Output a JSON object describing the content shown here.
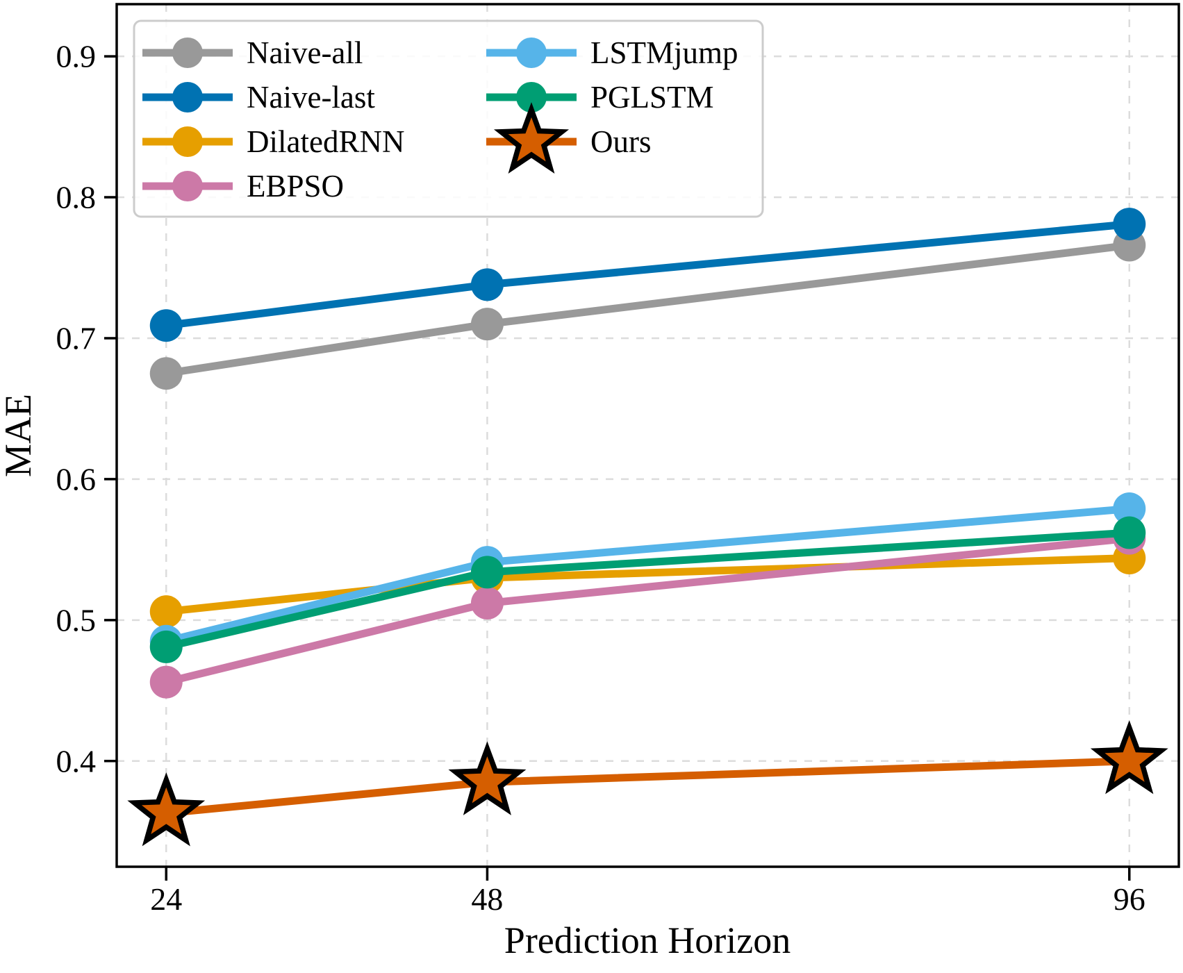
{
  "chart_data": {
    "type": "line",
    "title": "",
    "xlabel": "Prediction Horizon",
    "ylabel": "MAE",
    "x": [
      24,
      48,
      96
    ],
    "x_tick_labels": [
      "24",
      "48",
      "96"
    ],
    "y_ticks": [
      0.4,
      0.5,
      0.6,
      0.7,
      0.8,
      0.9
    ],
    "y_tick_labels": [
      "0.4",
      "0.5",
      "0.6",
      "0.7",
      "0.8",
      "0.9"
    ],
    "xlim": [
      20.3,
      99.7
    ],
    "ylim": [
      0.325,
      0.937
    ],
    "grid": true,
    "grid_style": "dashed",
    "legend_position": "upper-left",
    "legend_columns": 2,
    "series": [
      {
        "name": "Naive-all",
        "color": "#999999",
        "marker": "circle",
        "values": [
          0.675,
          0.71,
          0.766
        ]
      },
      {
        "name": "Naive-last",
        "color": "#0072b2",
        "marker": "circle",
        "values": [
          0.709,
          0.738,
          0.781
        ]
      },
      {
        "name": "DilatedRNN",
        "color": "#e69f00",
        "marker": "circle",
        "values": [
          0.506,
          0.53,
          0.544
        ]
      },
      {
        "name": "EBPSO",
        "color": "#cc79a7",
        "marker": "circle",
        "values": [
          0.456,
          0.512,
          0.558
        ]
      },
      {
        "name": "LSTMjump",
        "color": "#56b4e9",
        "marker": "circle",
        "values": [
          0.485,
          0.541,
          0.579
        ]
      },
      {
        "name": "PGLSTM",
        "color": "#009e73",
        "marker": "circle",
        "values": [
          0.481,
          0.534,
          0.562
        ]
      },
      {
        "name": "Ours",
        "color": "#d55e00",
        "marker": "star",
        "marker_edge": "#000000",
        "values": [
          0.363,
          0.385,
          0.4
        ]
      }
    ]
  },
  "style": {
    "background": "#ffffff",
    "axis_color": "#000000",
    "grid_color": "#dcdcdc",
    "legend_border": "#cccccc",
    "legend_background": "#ffffff"
  }
}
